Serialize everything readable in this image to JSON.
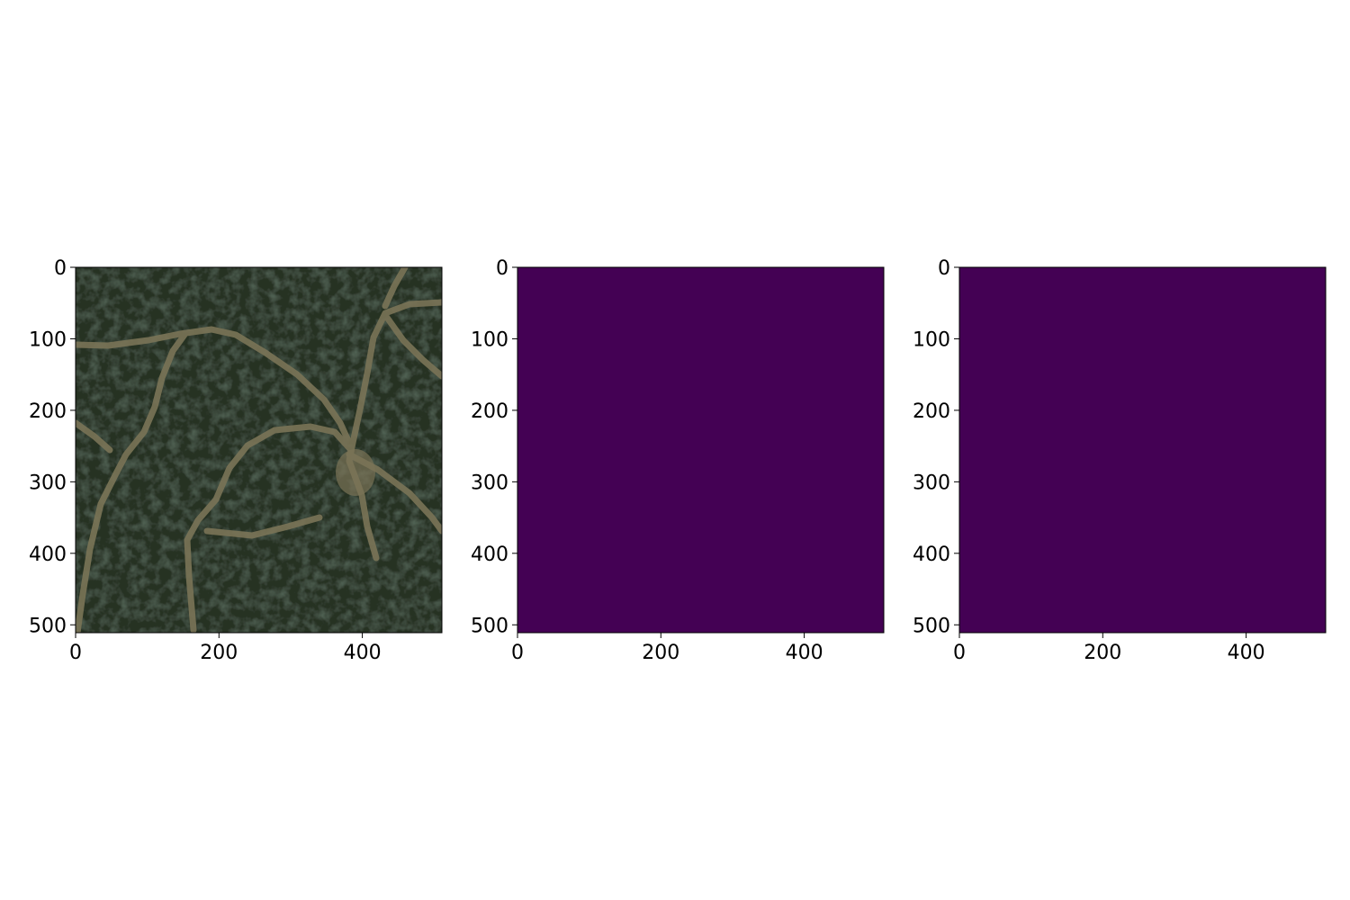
{
  "figure": {
    "background": "#ffffff"
  },
  "chart_data": [
    {
      "type": "image",
      "content": "aerial satellite photo of dark green forest crossed by tan dirt roads",
      "xlim": [
        0,
        511
      ],
      "ylim": [
        511,
        0
      ],
      "xticks": [
        0,
        200,
        400
      ],
      "yticks": [
        0,
        100,
        200,
        300,
        400,
        500
      ],
      "xtick_labels": [
        "0",
        "200",
        "400"
      ],
      "ytick_labels": [
        "0",
        "100",
        "200",
        "300",
        "400",
        "500"
      ],
      "colors": {
        "forest": "#263022",
        "road": "#7a7457"
      }
    },
    {
      "type": "heatmap",
      "colormap": "viridis",
      "uniform_color": "#440154",
      "xlim": [
        0,
        511
      ],
      "ylim": [
        511,
        0
      ],
      "xticks": [
        0,
        200,
        400
      ],
      "yticks": [
        0,
        100,
        200,
        300,
        400,
        500
      ],
      "xtick_labels": [
        "0",
        "200",
        "400"
      ],
      "ytick_labels": [
        "0",
        "100",
        "200",
        "300",
        "400",
        "500"
      ]
    },
    {
      "type": "heatmap",
      "colormap": "viridis",
      "uniform_color": "#440154",
      "xlim": [
        0,
        511
      ],
      "ylim": [
        511,
        0
      ],
      "xticks": [
        0,
        200,
        400
      ],
      "yticks": [
        0,
        100,
        200,
        300,
        400,
        500
      ],
      "xtick_labels": [
        "0",
        "200",
        "400"
      ],
      "ytick_labels": [
        "0",
        "100",
        "200",
        "300",
        "400",
        "500"
      ]
    }
  ]
}
